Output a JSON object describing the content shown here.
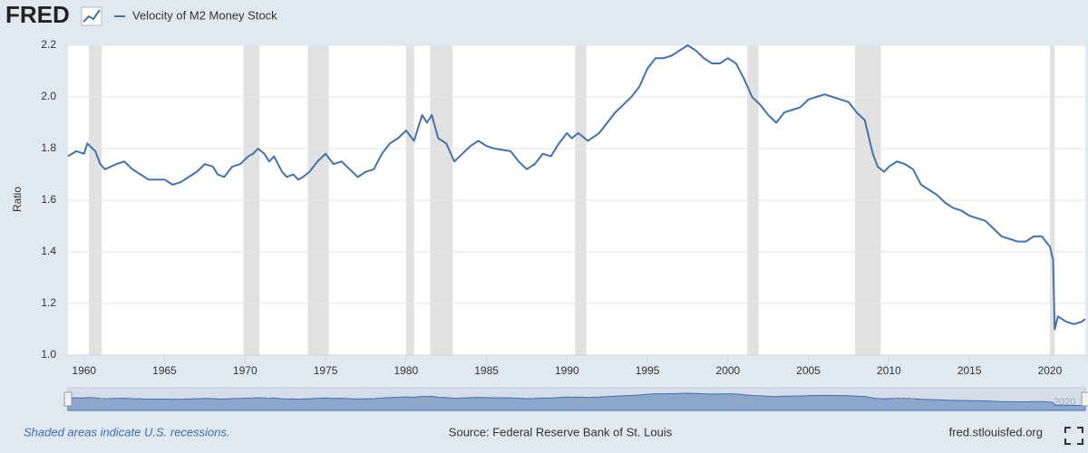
{
  "chart_data": {
    "type": "line",
    "logo": "FRED",
    "ylabel": "Ratio",
    "note": "Shaded areas indicate U.S. recessions.",
    "source": "Source: Federal Reserve Bank of St. Louis",
    "site": "fred.stlouisfed.org",
    "xlim": [
      1959,
      2022.2
    ],
    "xticks": [
      1960,
      1965,
      1970,
      1975,
      1980,
      1985,
      1990,
      1995,
      2000,
      2005,
      2010,
      2015,
      2020
    ],
    "ylim": [
      1.0,
      2.2
    ],
    "yticks": [
      {
        "value": 1.0,
        "label": "1.0"
      },
      1.2,
      1.4,
      1.6,
      1.8,
      {
        "value": 2.0,
        "label": "2.0"
      },
      2.2
    ],
    "grid": true,
    "navigator_xticks": [
      1960,
      1970,
      1980,
      1990,
      2000,
      2010,
      2020
    ],
    "recessions": [
      [
        1960.3,
        1961.1
      ],
      [
        1969.9,
        1970.9
      ],
      [
        1973.9,
        1975.2
      ],
      [
        1980.0,
        1980.5
      ],
      [
        1981.5,
        1982.9
      ],
      [
        1990.5,
        1991.2
      ],
      [
        2001.2,
        2001.9
      ],
      [
        2007.9,
        2009.5
      ],
      [
        2020.0,
        2020.3
      ]
    ],
    "x": [
      1959.0,
      1959.5,
      1960.0,
      1960.2,
      1960.7,
      1961.0,
      1961.3,
      1962.0,
      1962.5,
      1963.0,
      1963.5,
      1964.0,
      1964.5,
      1965.0,
      1965.5,
      1966.0,
      1966.5,
      1967.0,
      1967.5,
      1968.0,
      1968.3,
      1968.7,
      1969.2,
      1969.7,
      1970.2,
      1970.5,
      1970.8,
      1971.2,
      1971.5,
      1971.8,
      1972.3,
      1972.6,
      1973.0,
      1973.3,
      1973.6,
      1974.0,
      1974.5,
      1975.0,
      1975.5,
      1976.0,
      1976.5,
      1977.0,
      1977.5,
      1978.0,
      1978.5,
      1979.0,
      1979.5,
      1980.0,
      1980.5,
      1981.0,
      1981.3,
      1981.6,
      1982.0,
      1982.5,
      1983.0,
      1983.5,
      1984.0,
      1984.5,
      1985.0,
      1985.5,
      1986.5,
      1987.0,
      1987.5,
      1988.0,
      1988.5,
      1989.0,
      1989.5,
      1990.0,
      1990.3,
      1990.7,
      1991.3,
      1992.0,
      1992.5,
      1993.0,
      1993.5,
      1994.0,
      1994.5,
      1995.0,
      1995.5,
      1996.0,
      1996.5,
      1997.0,
      1997.5,
      1998.0,
      1998.5,
      1999.0,
      1999.5,
      2000.0,
      2000.5,
      2001.0,
      2001.5,
      2002.0,
      2002.5,
      2003.0,
      2003.5,
      2004.0,
      2004.5,
      2005.0,
      2005.5,
      2006.0,
      2006.5,
      2007.0,
      2007.5,
      2008.0,
      2008.5,
      2009.0,
      2009.3,
      2009.7,
      2010.0,
      2010.5,
      2011.0,
      2011.5,
      2012.0,
      2012.5,
      2013.0,
      2013.5,
      2014.0,
      2014.5,
      2015.0,
      2015.5,
      2016.0,
      2016.5,
      2017.0,
      2017.5,
      2018.0,
      2018.5,
      2019.0,
      2019.5,
      2020.0,
      2020.2,
      2020.3,
      2020.5,
      2021.0,
      2021.5,
      2022.0,
      2022.2
    ],
    "series": [
      {
        "name": "Velocity of M2 Money Stock",
        "color": "#4572a7",
        "values": [
          1.77,
          1.79,
          1.78,
          1.82,
          1.79,
          1.74,
          1.72,
          1.74,
          1.75,
          1.72,
          1.7,
          1.68,
          1.68,
          1.68,
          1.66,
          1.67,
          1.69,
          1.71,
          1.74,
          1.73,
          1.7,
          1.69,
          1.73,
          1.74,
          1.77,
          1.78,
          1.8,
          1.78,
          1.75,
          1.77,
          1.71,
          1.69,
          1.7,
          1.68,
          1.69,
          1.71,
          1.75,
          1.78,
          1.74,
          1.75,
          1.72,
          1.69,
          1.71,
          1.72,
          1.78,
          1.82,
          1.84,
          1.87,
          1.83,
          1.93,
          1.9,
          1.93,
          1.84,
          1.82,
          1.75,
          1.78,
          1.81,
          1.83,
          1.81,
          1.8,
          1.79,
          1.75,
          1.72,
          1.74,
          1.78,
          1.77,
          1.82,
          1.86,
          1.84,
          1.86,
          1.83,
          1.86,
          1.9,
          1.94,
          1.97,
          2.0,
          2.04,
          2.11,
          2.15,
          2.15,
          2.16,
          2.18,
          2.2,
          2.18,
          2.15,
          2.13,
          2.13,
          2.15,
          2.13,
          2.07,
          2.0,
          1.97,
          1.93,
          1.9,
          1.94,
          1.95,
          1.96,
          1.99,
          2.0,
          2.01,
          2.0,
          1.99,
          1.98,
          1.94,
          1.91,
          1.78,
          1.73,
          1.71,
          1.73,
          1.75,
          1.74,
          1.72,
          1.66,
          1.64,
          1.62,
          1.59,
          1.57,
          1.56,
          1.54,
          1.53,
          1.52,
          1.49,
          1.46,
          1.45,
          1.44,
          1.44,
          1.46,
          1.46,
          1.42,
          1.37,
          1.1,
          1.15,
          1.13,
          1.12,
          1.13,
          1.14
        ]
      }
    ]
  }
}
